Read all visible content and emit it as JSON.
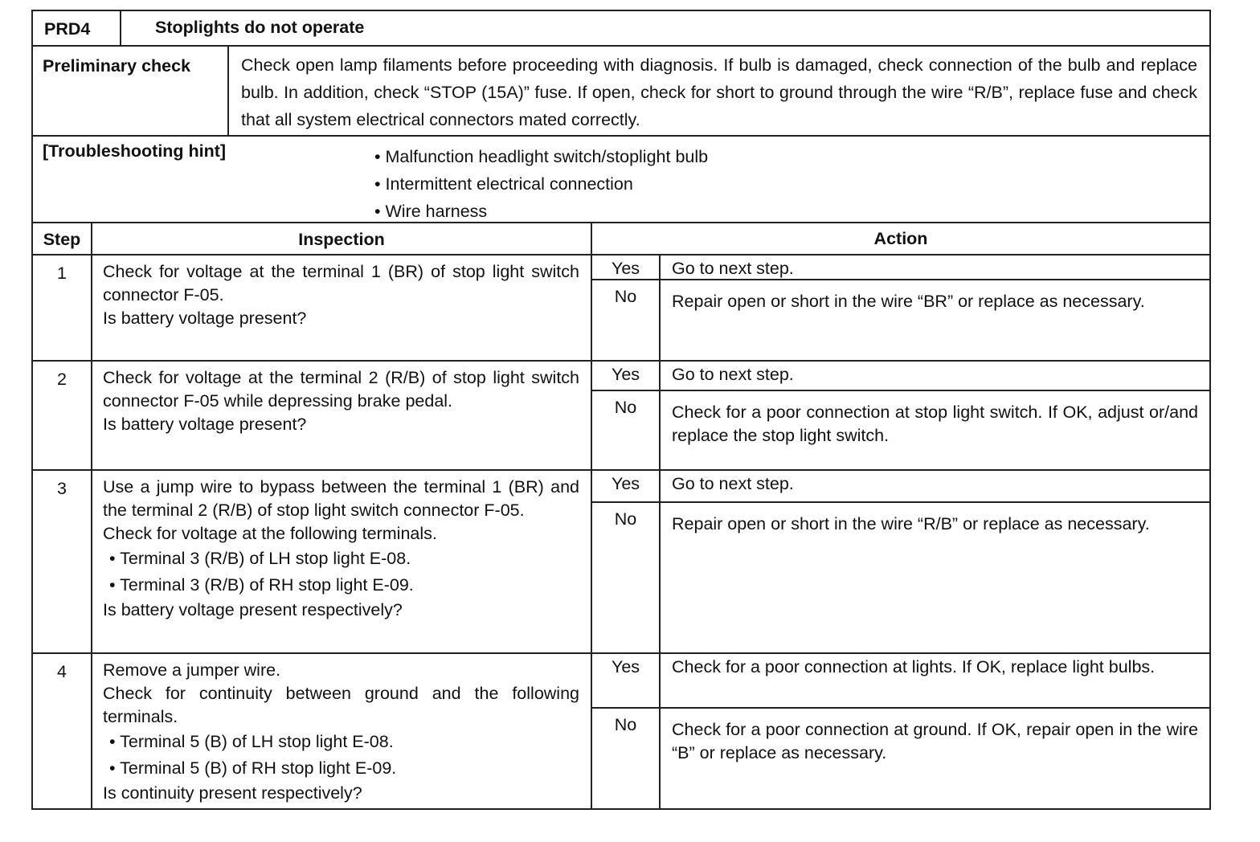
{
  "header": {
    "code": "PRD4",
    "title": "Stoplights do not operate"
  },
  "preliminary": {
    "label": "Preliminary check",
    "text": "Check open lamp filaments before proceeding with diagnosis. If bulb is damaged, check connection of the bulb and replace bulb. In addition, check “STOP (15A)” fuse. If open, check for short to ground through the wire “R/B”, replace fuse and check that all system electrical connectors mated correctly."
  },
  "hint": {
    "label": "[Troubleshooting hint]",
    "items": [
      "Malfunction headlight switch/stoplight bulb",
      "Intermittent electrical connection",
      "Wire harness"
    ]
  },
  "columns": {
    "step": "Step",
    "inspection": "Inspection",
    "action": "Action"
  },
  "steps": [
    {
      "num": "1",
      "inspection": "Check for voltage at the terminal 1 (BR) of stop light switch connector F-05.",
      "question": "Is battery voltage present?",
      "yes_label": "Yes",
      "yes": "Go to next step.",
      "no_label": "No",
      "no": "Repair open or short in the wire “BR” or replace as necessary."
    },
    {
      "num": "2",
      "inspection": "Check for voltage at the terminal 2 (R/B) of stop light switch connector F-05 while depressing brake pedal.",
      "question": "Is battery voltage present?",
      "yes_label": "Yes",
      "yes": "Go to next step.",
      "no_label": "No",
      "no": "Check for a poor connection at stop light switch. If OK, adjust or/and replace the stop light switch."
    },
    {
      "num": "3",
      "inspection": "Use a jump wire to bypass between the terminal 1 (BR) and the terminal 2 (R/B) of stop light switch connector F-05.",
      "inspection2": "Check for voltage at the following terminals.",
      "bullets": [
        "Terminal 3 (R/B) of LH stop light E-08.",
        "Terminal 3 (R/B) of RH stop light E-09."
      ],
      "question": "Is battery voltage present respectively?",
      "yes_label": "Yes",
      "yes": "Go to next step.",
      "no_label": "No",
      "no": "Repair open or short in the wire “R/B” or replace as necessary."
    },
    {
      "num": "4",
      "inspection": "Remove a jumper wire.",
      "inspection2": "Check for continuity between ground and the following terminals.",
      "bullets": [
        "Terminal 5 (B) of LH stop light E-08.",
        "Terminal 5 (B) of RH stop light E-09."
      ],
      "question": "Is continuity present respectively?",
      "yes_label": "Yes",
      "yes": "Check for a poor connection at lights. If OK, replace light bulbs.",
      "no_label": "No",
      "no": "Check for a poor connection at ground. If OK, repair open in the wire “B” or replace as necessary."
    }
  ]
}
